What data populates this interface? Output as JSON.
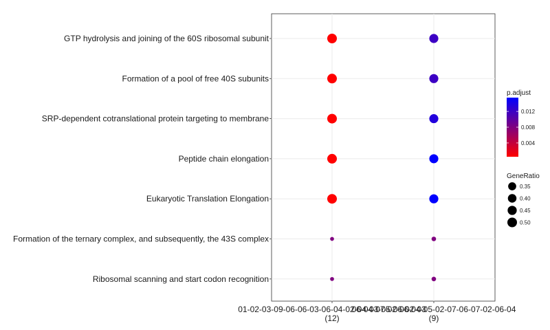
{
  "chart_data": {
    "type": "scatter",
    "subtype": "dot-plot",
    "title": "",
    "xlabel": "",
    "ylabel": "",
    "x_categories": [
      {
        "label": "01-02-03-09-06-06-03-06-04-02-04-03-05-06-02-03",
        "count": "(12)"
      },
      {
        "label": "06-04-07-02-06-04-05-02-07-06-07-02-06-04",
        "count": "(9)"
      }
    ],
    "y_categories": [
      "GTP hydrolysis and joining of the 60S ribosomal subunit",
      "Formation of a pool of free 40S subunits",
      "SRP-dependent cotranslational protein targeting to membrane",
      "Peptide chain elongation",
      "Eukaryotic Translation Elongation",
      "Formation of the ternary complex, and subsequently, the 43S complex",
      "Ribosomal scanning and start codon recognition"
    ],
    "points": [
      {
        "x": 0,
        "y": 0,
        "gene_ratio": 0.5,
        "p_adjust": 0.0005
      },
      {
        "x": 0,
        "y": 1,
        "gene_ratio": 0.5,
        "p_adjust": 0.0005
      },
      {
        "x": 0,
        "y": 2,
        "gene_ratio": 0.5,
        "p_adjust": 0.0005
      },
      {
        "x": 0,
        "y": 3,
        "gene_ratio": 0.5,
        "p_adjust": 0.0005
      },
      {
        "x": 0,
        "y": 4,
        "gene_ratio": 0.5,
        "p_adjust": 0.0005
      },
      {
        "x": 0,
        "y": 5,
        "gene_ratio": 0.083,
        "p_adjust": 0.008
      },
      {
        "x": 0,
        "y": 6,
        "gene_ratio": 0.083,
        "p_adjust": 0.008
      },
      {
        "x": 1,
        "y": 0,
        "gene_ratio": 0.44,
        "p_adjust": 0.012
      },
      {
        "x": 1,
        "y": 1,
        "gene_ratio": 0.44,
        "p_adjust": 0.012
      },
      {
        "x": 1,
        "y": 2,
        "gene_ratio": 0.44,
        "p_adjust": 0.0135
      },
      {
        "x": 1,
        "y": 3,
        "gene_ratio": 0.44,
        "p_adjust": 0.0155
      },
      {
        "x": 1,
        "y": 4,
        "gene_ratio": 0.44,
        "p_adjust": 0.0155
      },
      {
        "x": 1,
        "y": 5,
        "gene_ratio": 0.111,
        "p_adjust": 0.008
      },
      {
        "x": 1,
        "y": 6,
        "gene_ratio": 0.111,
        "p_adjust": 0.008
      }
    ],
    "color_legend": {
      "title": "p.adjust",
      "ticks": [
        0.004,
        0.008,
        0.012
      ],
      "tick_labels": [
        "0.004",
        "0.008",
        "0.012"
      ],
      "range": [
        0.0005,
        0.0155
      ],
      "low_color": "#ff0000",
      "high_color": "#0000ff"
    },
    "size_legend": {
      "title": "GeneRatio",
      "values": [
        0.35,
        0.4,
        0.45,
        0.5
      ],
      "labels": [
        "0.35",
        "0.40",
        "0.45",
        "0.50"
      ]
    },
    "grid": true,
    "legend_position": "right"
  }
}
